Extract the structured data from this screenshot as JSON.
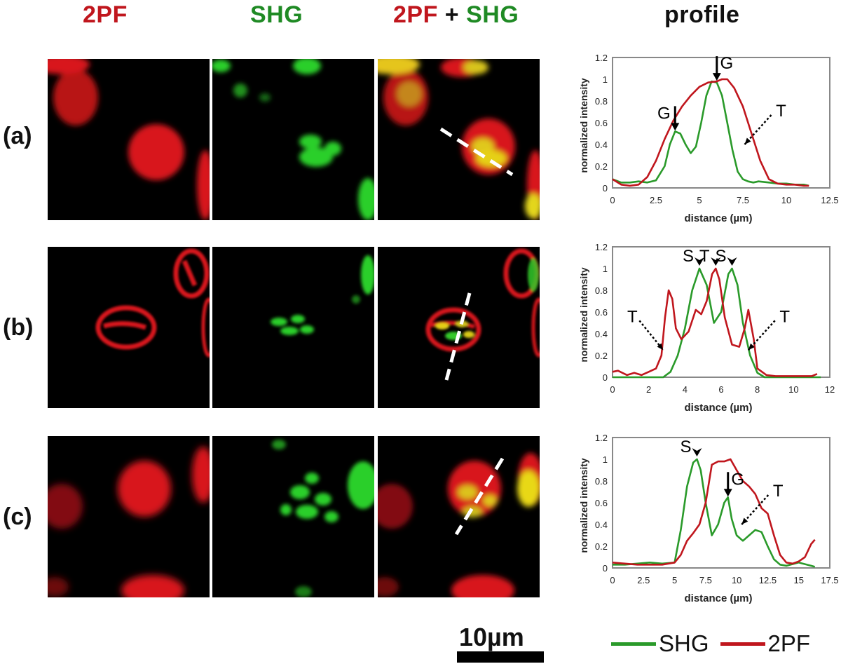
{
  "headers": {
    "col1": "2PF",
    "col2": "SHG",
    "col3_a": "2PF",
    "col3_plus": " + ",
    "col3_b": "SHG",
    "col4": "profile"
  },
  "rows": [
    {
      "label": "(a)"
    },
    {
      "label": "(b)"
    },
    {
      "label": "(c)"
    }
  ],
  "scale_bar": {
    "label": "10µm"
  },
  "legend": [
    {
      "name": "SHG",
      "color": "#2a9a2a"
    },
    {
      "name": "2PF",
      "color": "#c0161d"
    }
  ],
  "colors": {
    "shg": "#2a9a2a",
    "tpf": "#c0161d"
  },
  "chart_data": [
    {
      "type": "line",
      "xlabel": "distance (µm)",
      "ylabel": "normalized intensity",
      "xlim": [
        0,
        12.5
      ],
      "ylim": [
        0,
        1.2
      ],
      "xticks": [
        "0",
        "2.5",
        "5",
        "7.5",
        "10",
        "12.5"
      ],
      "yticks": [
        "0",
        "0.2",
        "0.4",
        "0.6",
        "0.8",
        "1",
        "1.2"
      ],
      "series": [
        {
          "name": "SHG",
          "color": "#2a9a2a",
          "x": [
            0,
            0.5,
            1,
            1.5,
            2,
            2.5,
            3,
            3.3,
            3.6,
            3.9,
            4.2,
            4.5,
            4.8,
            5.1,
            5.4,
            5.7,
            6,
            6.3,
            6.6,
            6.9,
            7.2,
            7.5,
            7.8,
            8.1,
            8.4,
            9,
            9.5,
            10,
            10.5,
            11,
            11.3
          ],
          "y": [
            0.08,
            0.05,
            0.05,
            0.06,
            0.05,
            0.07,
            0.2,
            0.4,
            0.52,
            0.5,
            0.4,
            0.32,
            0.38,
            0.6,
            0.85,
            0.98,
            0.97,
            0.85,
            0.6,
            0.35,
            0.15,
            0.08,
            0.06,
            0.05,
            0.06,
            0.05,
            0.04,
            0.04,
            0.03,
            0.03,
            0.02
          ]
        },
        {
          "name": "2PF",
          "color": "#c0161d",
          "x": [
            0,
            0.5,
            1,
            1.5,
            2,
            2.5,
            3,
            3.5,
            4,
            4.5,
            5,
            5.5,
            6,
            6.3,
            6.6,
            7,
            7.5,
            8,
            8.5,
            9,
            9.5,
            10,
            10.5,
            11,
            11.3
          ],
          "y": [
            0.08,
            0.03,
            0.02,
            0.03,
            0.1,
            0.25,
            0.45,
            0.62,
            0.75,
            0.85,
            0.93,
            0.97,
            0.98,
            1.0,
            1.0,
            0.92,
            0.75,
            0.5,
            0.25,
            0.08,
            0.04,
            0.03,
            0.03,
            0.02,
            0.02
          ]
        }
      ],
      "annotations": [
        {
          "text": "G",
          "x": 3.6,
          "y": 0.52,
          "arrow": "solid"
        },
        {
          "text": "G",
          "x": 6.0,
          "y": 0.98,
          "arrow": "solid"
        },
        {
          "text": "T",
          "x": 7.6,
          "y": 0.4,
          "arrow": "dotted"
        }
      ]
    },
    {
      "type": "line",
      "xlabel": "distance (µm)",
      "ylabel": "normalized intensity",
      "xlim": [
        0,
        12
      ],
      "ylim": [
        0,
        1.2
      ],
      "xticks": [
        "0",
        "2",
        "4",
        "6",
        "8",
        "10",
        "12"
      ],
      "yticks": [
        "0",
        "0.2",
        "0.4",
        "0.6",
        "0.8",
        "1",
        "1.2"
      ],
      "series": [
        {
          "name": "SHG",
          "color": "#2a9a2a",
          "x": [
            0,
            1,
            2,
            2.8,
            3.2,
            3.6,
            4,
            4.4,
            4.8,
            5.2,
            5.6,
            6,
            6.4,
            6.6,
            6.9,
            7.2,
            7.6,
            8,
            8.4,
            9,
            10,
            11,
            11.5
          ],
          "y": [
            0,
            0,
            0,
            0,
            0.05,
            0.2,
            0.45,
            0.8,
            1.0,
            0.85,
            0.5,
            0.6,
            0.95,
            1.0,
            0.85,
            0.5,
            0.2,
            0.04,
            0,
            0,
            0,
            0,
            0
          ]
        },
        {
          "name": "2PF",
          "color": "#c0161d",
          "x": [
            0,
            0.3,
            0.8,
            1.2,
            1.6,
            2,
            2.4,
            2.7,
            2.9,
            3.1,
            3.3,
            3.5,
            3.8,
            4.2,
            4.6,
            4.9,
            5.2,
            5.5,
            5.7,
            5.9,
            6.2,
            6.6,
            7,
            7.3,
            7.5,
            7.8,
            8,
            8.5,
            9,
            10,
            11,
            11.3
          ],
          "y": [
            0.05,
            0.06,
            0.02,
            0.04,
            0.02,
            0.05,
            0.08,
            0.2,
            0.55,
            0.8,
            0.72,
            0.45,
            0.35,
            0.42,
            0.62,
            0.58,
            0.7,
            0.95,
            1.0,
            0.9,
            0.55,
            0.3,
            0.28,
            0.45,
            0.62,
            0.35,
            0.08,
            0.02,
            0.01,
            0.01,
            0.01,
            0.03
          ]
        }
      ],
      "annotations": [
        {
          "text": "S",
          "x": 4.8,
          "y": 1.0,
          "arrow": "head"
        },
        {
          "text": "T",
          "x": 5.7,
          "y": 1.0,
          "arrow": "head"
        },
        {
          "text": "S",
          "x": 6.6,
          "y": 1.0,
          "arrow": "head"
        },
        {
          "text": "T",
          "x": 2.8,
          "y": 0.25,
          "arrow": "dotted"
        },
        {
          "text": "T",
          "x": 7.5,
          "y": 0.25,
          "arrow": "dotted"
        }
      ]
    },
    {
      "type": "line",
      "xlabel": "distance (µm)",
      "ylabel": "normalized intensity",
      "xlim": [
        0,
        17.5
      ],
      "ylim": [
        0,
        1.2
      ],
      "xticks": [
        "0",
        "2.5",
        "5",
        "7.5",
        "10",
        "12.5",
        "15",
        "17.5"
      ],
      "yticks": [
        "0",
        "0.2",
        "0.4",
        "0.6",
        "0.8",
        "1",
        "1.2"
      ],
      "series": [
        {
          "name": "SHG",
          "color": "#2a9a2a",
          "x": [
            0,
            1,
            2,
            3,
            4,
            5,
            5.5,
            6,
            6.5,
            6.8,
            7.1,
            7.5,
            8,
            8.5,
            9,
            9.3,
            9.6,
            10,
            10.5,
            11,
            11.5,
            12,
            12.5,
            13,
            13.5,
            14,
            15,
            16,
            16.3
          ],
          "y": [
            0.03,
            0.03,
            0.04,
            0.05,
            0.04,
            0.05,
            0.35,
            0.75,
            0.97,
            1.0,
            0.9,
            0.6,
            0.3,
            0.4,
            0.6,
            0.65,
            0.45,
            0.3,
            0.25,
            0.3,
            0.35,
            0.33,
            0.2,
            0.08,
            0.03,
            0.02,
            0.05,
            0.02,
            0.01
          ]
        },
        {
          "name": "2PF",
          "color": "#c0161d",
          "x": [
            0,
            1,
            2,
            3,
            4,
            5,
            5.5,
            6,
            6.5,
            7,
            7.5,
            8,
            8.5,
            9,
            9.5,
            10,
            10.5,
            11,
            11.5,
            12,
            12.5,
            13,
            13.5,
            14,
            14.5,
            15,
            15.5,
            16,
            16.3
          ],
          "y": [
            0.05,
            0.04,
            0.03,
            0.03,
            0.03,
            0.05,
            0.12,
            0.25,
            0.32,
            0.4,
            0.6,
            0.95,
            0.98,
            0.98,
            1.0,
            0.9,
            0.8,
            0.75,
            0.68,
            0.55,
            0.5,
            0.3,
            0.12,
            0.05,
            0.04,
            0.06,
            0.1,
            0.22,
            0.26
          ]
        }
      ],
      "annotations": [
        {
          "text": "S",
          "x": 6.8,
          "y": 1.0,
          "arrow": "head"
        },
        {
          "text": "G",
          "x": 9.3,
          "y": 0.65,
          "arrow": "solid"
        },
        {
          "text": "T",
          "x": 10.4,
          "y": 0.4,
          "arrow": "dotted"
        }
      ]
    }
  ]
}
